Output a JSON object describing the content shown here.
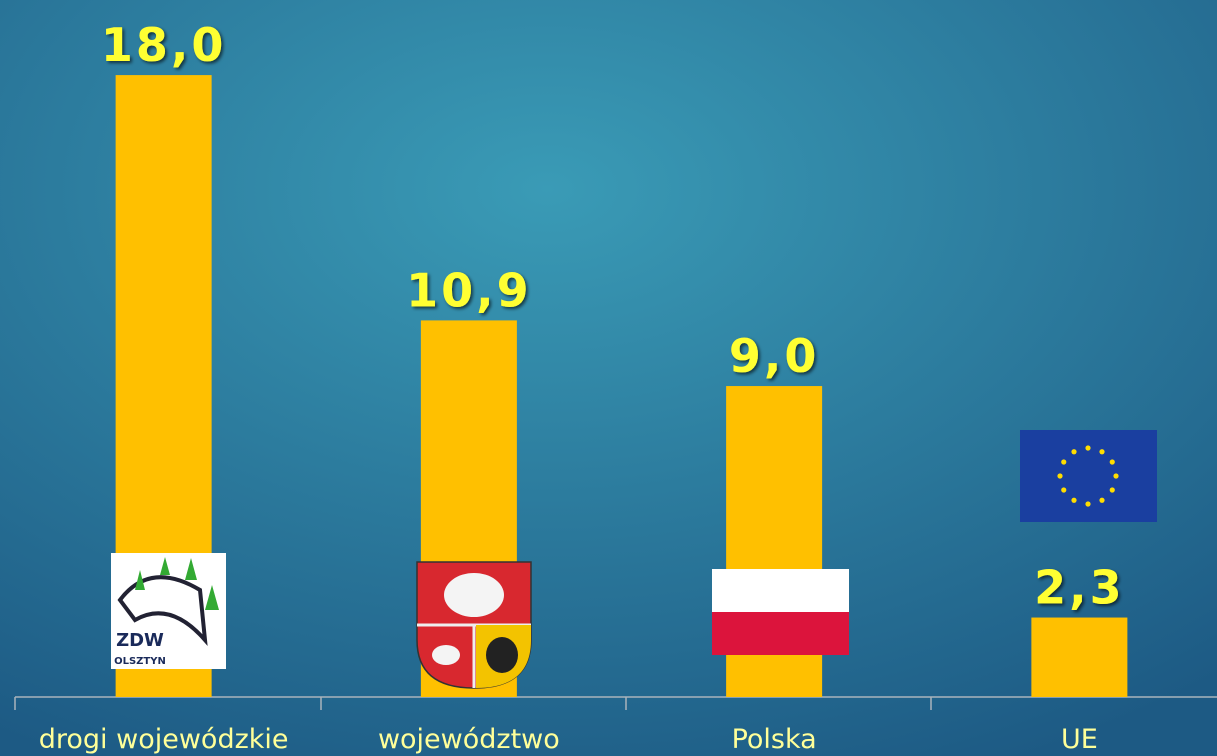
{
  "chart_data": {
    "type": "bar",
    "categories": [
      "drogi wojewódzkie",
      "województwo",
      "Polska",
      "UE"
    ],
    "values": [
      18.0,
      10.9,
      9.0,
      2.3
    ],
    "value_labels": [
      "18,0",
      "10,9",
      "9,0",
      "2,3"
    ],
    "color": "#ffc000",
    "ylim": [
      0,
      20
    ],
    "annotations": [
      "ZDW",
      "OLSZTYN"
    ]
  }
}
